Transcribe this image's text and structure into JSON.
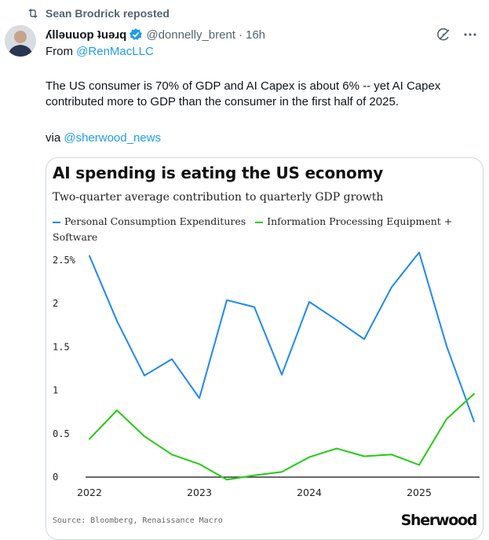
{
  "repost": {
    "text": "Sean Brodrick reposted",
    "icon": "repost-icon"
  },
  "author": {
    "display_name": "ʎllǝuuop ʇuǝɹq",
    "handle": "@donnelly_brent",
    "time": "16h",
    "verified": true
  },
  "tweet": {
    "from_prefix": "From ",
    "from_mention": "@RenMacLLC",
    "body": "The US consumer is 70% of GDP and AI Capex is about 6% -- yet AI Capex contributed more to GDP than the consumer in the first half of 2025.",
    "via_prefix": "via ",
    "via_mention": "@sherwood_news"
  },
  "colors": {
    "link": "#1d9bf0",
    "pce": "#1e88f5",
    "ipe": "#22cc11"
  },
  "card": {
    "source": "Source: Bloomberg, Renaissance Macro",
    "brand": "Sherwood"
  },
  "chart_data": {
    "type": "line",
    "title": "AI spending is eating the US economy",
    "subtitle": "Two-quarter average contribution to quarterly GDP growth",
    "x_ticks": [
      "2022",
      "2023",
      "2024",
      "2025"
    ],
    "y_ticks": [
      "2.5%",
      "2",
      "1.5",
      "1",
      "0.5",
      "0"
    ],
    "ylim": [
      0,
      2.6
    ],
    "x_range": [
      2022.0,
      2025.5
    ],
    "legend_placement": "top",
    "series": [
      {
        "name": "Personal Consumption Expenditures",
        "color": "#1e88f5",
        "x": [
          2022.0,
          2022.25,
          2022.5,
          2022.75,
          2023.0,
          2023.25,
          2023.5,
          2023.75,
          2024.0,
          2024.25,
          2024.5,
          2024.75,
          2025.0,
          2025.25,
          2025.5
        ],
        "values": [
          2.55,
          1.8,
          1.17,
          1.36,
          0.91,
          2.04,
          1.96,
          1.18,
          2.02,
          1.81,
          1.59,
          2.19,
          2.59,
          1.51,
          0.64
        ]
      },
      {
        "name": "Information Processing Equipment + Software",
        "color": "#22cc11",
        "x": [
          2022.0,
          2022.25,
          2022.5,
          2022.75,
          2023.0,
          2023.25,
          2023.5,
          2023.75,
          2024.0,
          2024.25,
          2024.5,
          2024.75,
          2025.0,
          2025.25,
          2025.5
        ],
        "values": [
          0.44,
          0.77,
          0.47,
          0.26,
          0.15,
          -0.03,
          0.02,
          0.06,
          0.23,
          0.33,
          0.24,
          0.26,
          0.14,
          0.67,
          0.96
        ]
      }
    ]
  }
}
